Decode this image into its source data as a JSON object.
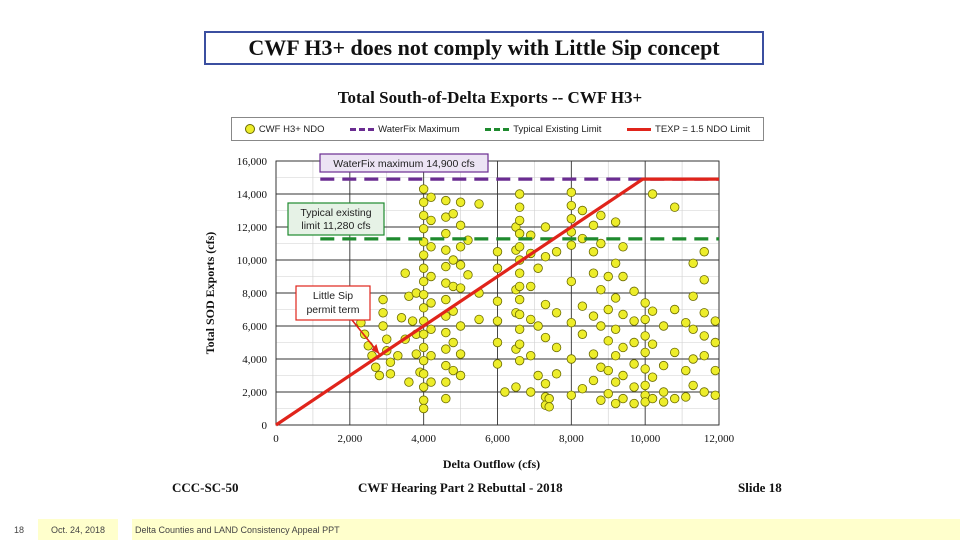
{
  "slide": {
    "title": "CWF H3+ does not comply with Little Sip concept",
    "caption_left": "CCC-SC-50",
    "caption_center": "CWF Hearing Part 2 Rebuttal - 2018",
    "caption_right": "Slide 18"
  },
  "footer": {
    "page_number": "18",
    "date": "Oct. 24, 2018",
    "text": "Delta Counties and LAND Consistency Appeal PPT"
  },
  "colors": {
    "points": "#eded2a",
    "point_edge": "#6b6b00",
    "waterfix": "#6a2c91",
    "existing": "#1e8a2e",
    "texp": "#e0241b",
    "title_border": "#3b4fa0",
    "footer_bg": "#ffffcc"
  },
  "chart_data": {
    "type": "scatter",
    "title": "Total South-of-Delta Exports -- CWF H3+",
    "xlabel": "Delta Outflow (cfs)",
    "ylabel": "Total SOD Exports (cfs)",
    "xlim": [
      0,
      12000
    ],
    "ylim": [
      0,
      16000
    ],
    "xticks": [
      0,
      2000,
      4000,
      6000,
      8000,
      10000,
      12000
    ],
    "xtick_labels": [
      "0",
      "2,000",
      "4,000",
      "6,000",
      "8,000",
      "10,000",
      "12,000"
    ],
    "yticks": [
      0,
      2000,
      4000,
      6000,
      8000,
      10000,
      12000,
      14000,
      16000
    ],
    "ytick_labels": [
      "0",
      "2,000",
      "4,000",
      "6,000",
      "8,000",
      "10,000",
      "12,000",
      "14,000",
      "16,000"
    ],
    "grid": true,
    "legend": [
      {
        "label": "CWF H3+ NDO",
        "marker": "circle",
        "color": "#eded2a"
      },
      {
        "label": "WaterFix Maximum",
        "marker": "dashed-line",
        "color": "#6a2c91"
      },
      {
        "label": "Typical Existing Limit",
        "marker": "dashed-line",
        "color": "#1e8a2e"
      },
      {
        "label": "TEXP = 1.5 NDO Limit",
        "marker": "line",
        "color": "#e0241b"
      }
    ],
    "reference_lines": [
      {
        "name": "WaterFix Maximum",
        "kind": "horizontal",
        "y": 14900,
        "x_range": [
          1200,
          12000
        ],
        "style": "dashed",
        "color": "#6a2c91"
      },
      {
        "name": "Typical Existing Limit",
        "kind": "horizontal",
        "y": 11280,
        "x_range": [
          1200,
          12000
        ],
        "style": "dashed",
        "color": "#1e8a2e"
      },
      {
        "name": "TEXP = 1.5 NDO Limit",
        "kind": "segments",
        "points": [
          [
            0,
            0
          ],
          [
            9933,
            14900
          ],
          [
            12000,
            14900
          ]
        ],
        "style": "solid",
        "color": "#e0241b"
      }
    ],
    "annotations": [
      {
        "text": "WaterFix maximum 14,900 cfs",
        "color": "#6a2c91"
      },
      {
        "lines": [
          "Typical existing",
          "limit 11,280 cfs"
        ],
        "color": "#1e8a2e"
      },
      {
        "lines": [
          "Little Sip",
          "permit term"
        ],
        "color": "#e0241b",
        "points_to": [
          2800,
          4300
        ]
      }
    ],
    "points": [
      [
        2300,
        7800
      ],
      [
        2300,
        7000
      ],
      [
        2300,
        6200
      ],
      [
        2400,
        5500
      ],
      [
        2500,
        4800
      ],
      [
        2600,
        4200
      ],
      [
        2700,
        3500
      ],
      [
        2800,
        3000
      ],
      [
        2900,
        7600
      ],
      [
        2900,
        6800
      ],
      [
        2900,
        6000
      ],
      [
        3000,
        5200
      ],
      [
        3000,
        4500
      ],
      [
        3100,
        3800
      ],
      [
        3100,
        3100
      ],
      [
        3300,
        4200
      ],
      [
        3400,
        6500
      ],
      [
        3500,
        9200
      ],
      [
        3500,
        5200
      ],
      [
        3600,
        7800
      ],
      [
        3600,
        2600
      ],
      [
        3700,
        6300
      ],
      [
        3800,
        8000
      ],
      [
        3800,
        5500
      ],
      [
        3800,
        4300
      ],
      [
        3900,
        3200
      ],
      [
        4000,
        14300
      ],
      [
        4000,
        13500
      ],
      [
        4000,
        12700
      ],
      [
        4000,
        11900
      ],
      [
        4000,
        11100
      ],
      [
        4000,
        10300
      ],
      [
        4000,
        9500
      ],
      [
        4000,
        8700
      ],
      [
        4000,
        7900
      ],
      [
        4000,
        7100
      ],
      [
        4000,
        6300
      ],
      [
        4000,
        5500
      ],
      [
        4000,
        4700
      ],
      [
        4000,
        3900
      ],
      [
        4000,
        3100
      ],
      [
        4000,
        2300
      ],
      [
        4000,
        1500
      ],
      [
        4000,
        1000
      ],
      [
        4200,
        13800
      ],
      [
        4200,
        12400
      ],
      [
        4200,
        10800
      ],
      [
        4200,
        9000
      ],
      [
        4200,
        7400
      ],
      [
        4200,
        5800
      ],
      [
        4200,
        4200
      ],
      [
        4200,
        2600
      ],
      [
        4600,
        13600
      ],
      [
        4600,
        12600
      ],
      [
        4600,
        11600
      ],
      [
        4600,
        10600
      ],
      [
        4600,
        9600
      ],
      [
        4600,
        8600
      ],
      [
        4600,
        7600
      ],
      [
        4600,
        6600
      ],
      [
        4600,
        5600
      ],
      [
        4600,
        4600
      ],
      [
        4600,
        3600
      ],
      [
        4600,
        2600
      ],
      [
        4600,
        1600
      ],
      [
        4800,
        12800
      ],
      [
        4800,
        10000
      ],
      [
        4800,
        8400
      ],
      [
        4800,
        6900
      ],
      [
        4800,
        5000
      ],
      [
        4800,
        3300
      ],
      [
        5000,
        13500
      ],
      [
        5000,
        12100
      ],
      [
        5000,
        10800
      ],
      [
        5000,
        9700
      ],
      [
        5000,
        8300
      ],
      [
        5000,
        6000
      ],
      [
        5000,
        4300
      ],
      [
        5000,
        3000
      ],
      [
        5200,
        11200
      ],
      [
        5200,
        9100
      ],
      [
        5500,
        13400
      ],
      [
        5500,
        8000
      ],
      [
        5500,
        6400
      ],
      [
        6000,
        10500
      ],
      [
        6000,
        9500
      ],
      [
        6000,
        7500
      ],
      [
        6000,
        6300
      ],
      [
        6000,
        5000
      ],
      [
        6000,
        3700
      ],
      [
        6200,
        2000
      ],
      [
        6500,
        12000
      ],
      [
        6500,
        10600
      ],
      [
        6500,
        8200
      ],
      [
        6500,
        6800
      ],
      [
        6500,
        4600
      ],
      [
        6500,
        2300
      ],
      [
        6600,
        14000
      ],
      [
        6600,
        13200
      ],
      [
        6600,
        12400
      ],
      [
        6600,
        11600
      ],
      [
        6600,
        10800
      ],
      [
        6600,
        10000
      ],
      [
        6600,
        9200
      ],
      [
        6600,
        8400
      ],
      [
        6600,
        7600
      ],
      [
        6600,
        6700
      ],
      [
        6600,
        5800
      ],
      [
        6600,
        4900
      ],
      [
        6600,
        3900
      ],
      [
        6900,
        11500
      ],
      [
        6900,
        10400
      ],
      [
        6900,
        8400
      ],
      [
        6900,
        6400
      ],
      [
        6900,
        4200
      ],
      [
        6900,
        2000
      ],
      [
        7100,
        9500
      ],
      [
        7100,
        6000
      ],
      [
        7100,
        3000
      ],
      [
        7300,
        12000
      ],
      [
        7300,
        10200
      ],
      [
        7300,
        7300
      ],
      [
        7300,
        5300
      ],
      [
        7300,
        2500
      ],
      [
        7300,
        1700
      ],
      [
        7300,
        1200
      ],
      [
        7400,
        1600
      ],
      [
        7400,
        1100
      ],
      [
        7600,
        10500
      ],
      [
        7600,
        6800
      ],
      [
        7600,
        4700
      ],
      [
        7600,
        3100
      ],
      [
        8000,
        14100
      ],
      [
        8000,
        13300
      ],
      [
        8000,
        12500
      ],
      [
        8000,
        11700
      ],
      [
        8000,
        10900
      ],
      [
        8000,
        8700
      ],
      [
        8000,
        6200
      ],
      [
        8000,
        4000
      ],
      [
        8000,
        1800
      ],
      [
        8300,
        13000
      ],
      [
        8300,
        11300
      ],
      [
        8300,
        7200
      ],
      [
        8300,
        5500
      ],
      [
        8300,
        2200
      ],
      [
        8600,
        12100
      ],
      [
        8600,
        10500
      ],
      [
        8600,
        9200
      ],
      [
        8600,
        6600
      ],
      [
        8600,
        4300
      ],
      [
        8600,
        2700
      ],
      [
        8800,
        12700
      ],
      [
        8800,
        11000
      ],
      [
        8800,
        8200
      ],
      [
        8800,
        6000
      ],
      [
        8800,
        3500
      ],
      [
        8800,
        1500
      ],
      [
        9000,
        9000
      ],
      [
        9000,
        7000
      ],
      [
        9000,
        5100
      ],
      [
        9000,
        3300
      ],
      [
        9000,
        1900
      ],
      [
        9200,
        12300
      ],
      [
        9200,
        9800
      ],
      [
        9200,
        7700
      ],
      [
        9200,
        5800
      ],
      [
        9200,
        4200
      ],
      [
        9200,
        2600
      ],
      [
        9200,
        1300
      ],
      [
        9400,
        10800
      ],
      [
        9400,
        9000
      ],
      [
        9400,
        6700
      ],
      [
        9400,
        4700
      ],
      [
        9400,
        3000
      ],
      [
        9400,
        1600
      ],
      [
        9700,
        8100
      ],
      [
        9700,
        6300
      ],
      [
        9700,
        5000
      ],
      [
        9700,
        3700
      ],
      [
        9700,
        2300
      ],
      [
        9700,
        1300
      ],
      [
        10000,
        7400
      ],
      [
        10000,
        6400
      ],
      [
        10000,
        5400
      ],
      [
        10000,
        4400
      ],
      [
        10000,
        3400
      ],
      [
        10000,
        2400
      ],
      [
        10000,
        1800
      ],
      [
        10000,
        1400
      ],
      [
        10200,
        14000
      ],
      [
        10200,
        6900
      ],
      [
        10200,
        4900
      ],
      [
        10200,
        2900
      ],
      [
        10200,
        1600
      ],
      [
        10500,
        6000
      ],
      [
        10500,
        3600
      ],
      [
        10500,
        2000
      ],
      [
        10500,
        1400
      ],
      [
        10800,
        13200
      ],
      [
        10800,
        7000
      ],
      [
        10800,
        4400
      ],
      [
        10800,
        1600
      ],
      [
        11100,
        6200
      ],
      [
        11100,
        3300
      ],
      [
        11100,
        1700
      ],
      [
        11300,
        9800
      ],
      [
        11300,
        7800
      ],
      [
        11300,
        5800
      ],
      [
        11300,
        4000
      ],
      [
        11300,
        2400
      ],
      [
        11600,
        10500
      ],
      [
        11600,
        8800
      ],
      [
        11600,
        6800
      ],
      [
        11600,
        5400
      ],
      [
        11600,
        4200
      ],
      [
        11600,
        2000
      ],
      [
        11900,
        6300
      ],
      [
        11900,
        5000
      ],
      [
        11900,
        3300
      ],
      [
        11900,
        1800
      ]
    ]
  }
}
